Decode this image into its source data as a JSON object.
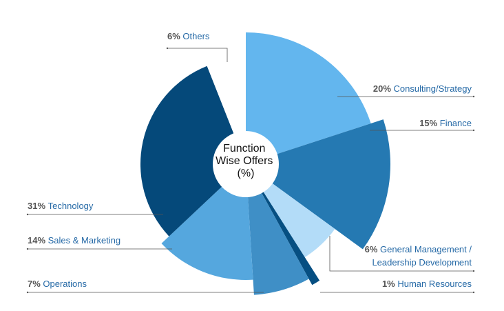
{
  "chart_data": {
    "type": "pie",
    "style": "variable-radius donut",
    "center_label": [
      "Function",
      "Wise Offers",
      "(%)"
    ],
    "slices": [
      {
        "label": "Consulting/Strategy",
        "value": 20,
        "value_label": "20%",
        "color": "#63b6ee"
      },
      {
        "label": "Finance",
        "value": 15,
        "value_label": "15%",
        "color": "#2579b2"
      },
      {
        "label": "General Management /",
        "label_line2": "Leadership Development",
        "value": 6,
        "value_label": "6%",
        "color": "#b3dcf8"
      },
      {
        "label": "Human Resources",
        "value": 1,
        "value_label": "1%",
        "color": "#064f82"
      },
      {
        "label": "Operations",
        "value": 7,
        "value_label": "7%",
        "color": "#3f8fc6"
      },
      {
        "label": "Sales & Marketing",
        "value": 14,
        "value_label": "14%",
        "color": "#55a7de"
      },
      {
        "label": "Technology",
        "value": 31,
        "value_label": "31%",
        "color": "#05497a"
      },
      {
        "label": "Others",
        "value": 6,
        "value_label": "6%",
        "color": "#ffffff"
      }
    ]
  }
}
